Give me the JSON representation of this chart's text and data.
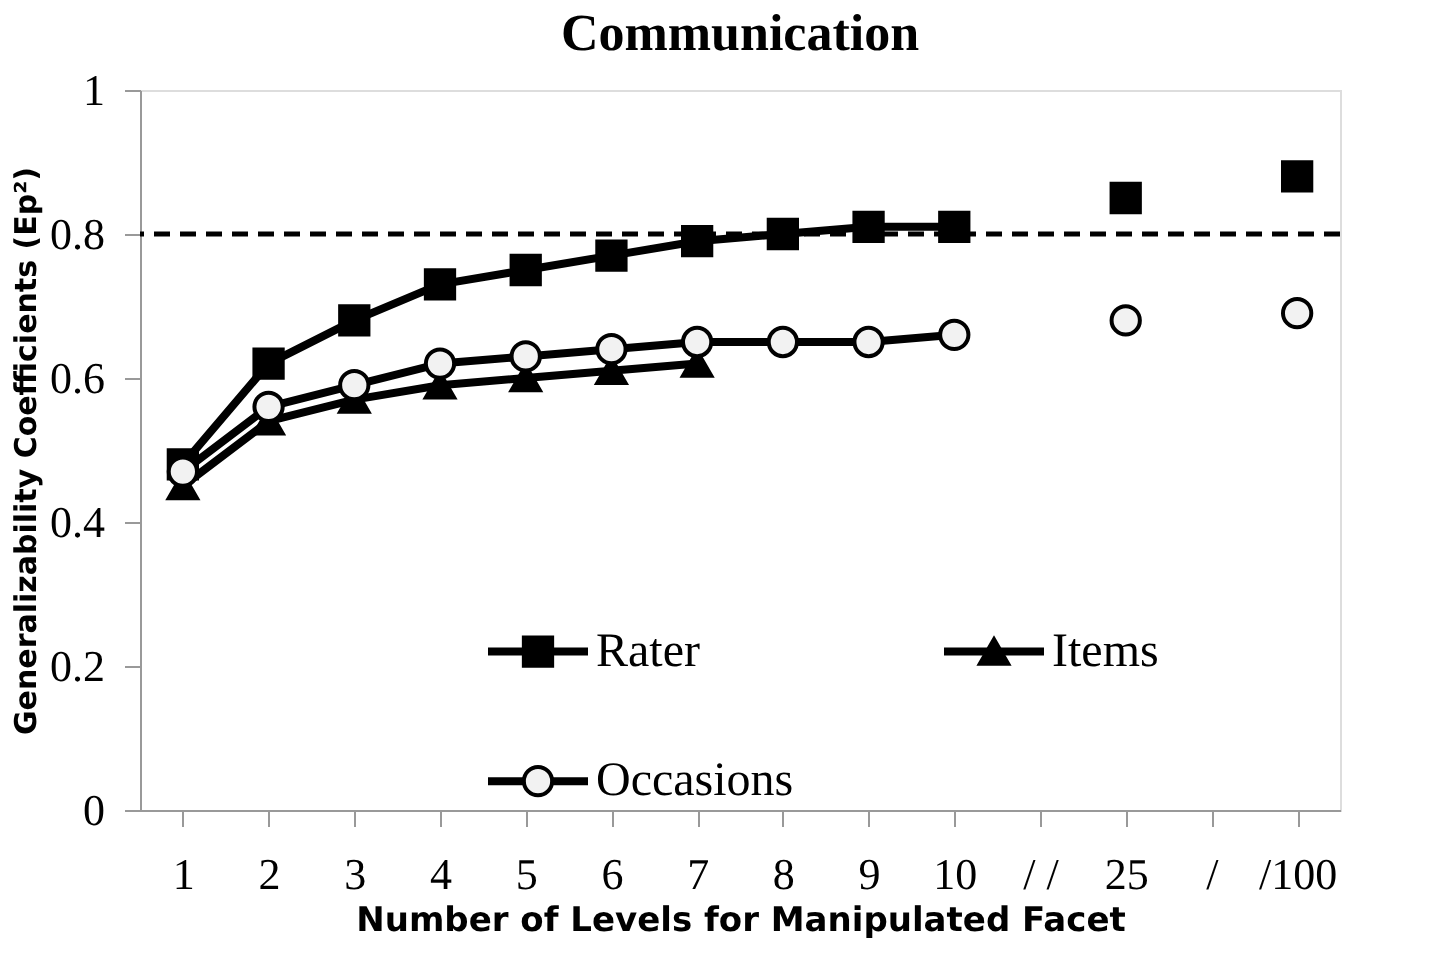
{
  "chart_data": {
    "type": "line",
    "title": "Communication",
    "xlabel": "Number of Levels  for Manipulated Facet",
    "ylabel": "Generalizability Coefficients (Ep²)",
    "categories": [
      "1",
      "2",
      "3",
      "4",
      "5",
      "6",
      "7",
      "8",
      "9",
      "10",
      "/ /",
      "25",
      "/",
      "/100"
    ],
    "series": [
      {
        "name": "Rater",
        "color": "#000000",
        "marker": "square",
        "values": [
          0.48,
          0.62,
          0.68,
          0.73,
          0.75,
          0.77,
          0.79,
          0.8,
          0.81,
          0.81,
          null,
          0.85,
          null,
          0.88
        ]
      },
      {
        "name": "Items",
        "color": "#000000",
        "marker": "triangle",
        "values": [
          0.45,
          0.54,
          0.57,
          0.59,
          0.6,
          0.61,
          0.62,
          null,
          null,
          null,
          null,
          null,
          null,
          null
        ]
      },
      {
        "name": "Occasions",
        "color": "#000000",
        "marker": "circle",
        "values": [
          0.47,
          0.56,
          0.59,
          0.62,
          0.63,
          0.64,
          0.65,
          0.65,
          0.65,
          0.66,
          null,
          0.68,
          null,
          0.69
        ]
      }
    ],
    "ylim": [
      0,
      1
    ],
    "yticks": [
      0,
      0.2,
      0.4,
      0.6,
      0.8,
      1
    ],
    "ref_lines": [
      {
        "axis": "y",
        "value": 0.8,
        "color": "#000000",
        "line_style": "dashed"
      }
    ],
    "grid": false,
    "legend": "bottom",
    "line_style": "solid"
  }
}
